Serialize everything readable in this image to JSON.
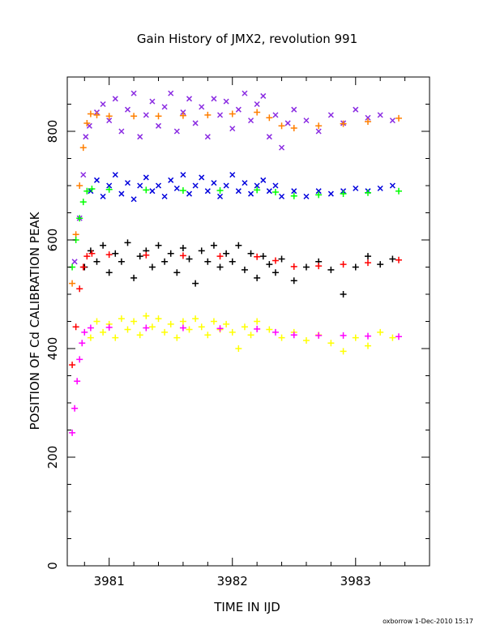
{
  "chart_data": {
    "type": "scatter",
    "title": "Gain History of JMX2, revolution 991",
    "xlabel": "TIME IN IJD",
    "ylabel": "POSITION OF Cd CALIBRATION PEAK",
    "xlim": [
      3980.66,
      3983.6
    ],
    "ylim": [
      0,
      900
    ],
    "xticks": [
      3981,
      3982,
      3983
    ],
    "yticks": [
      0,
      200,
      400,
      600,
      800
    ],
    "grid": false,
    "legend": "none",
    "series": [
      {
        "marker": "x",
        "color": "#8a2be2",
        "points": [
          [
            3980.72,
            560
          ],
          [
            3980.76,
            640
          ],
          [
            3980.79,
            720
          ],
          [
            3980.81,
            790
          ],
          [
            3980.84,
            810
          ],
          [
            3980.9,
            835
          ],
          [
            3980.95,
            850
          ],
          [
            3981.0,
            820
          ],
          [
            3981.05,
            860
          ],
          [
            3981.1,
            800
          ],
          [
            3981.15,
            840
          ],
          [
            3981.2,
            870
          ],
          [
            3981.25,
            790
          ],
          [
            3981.3,
            830
          ],
          [
            3981.35,
            855
          ],
          [
            3981.4,
            810
          ],
          [
            3981.45,
            845
          ],
          [
            3981.5,
            870
          ],
          [
            3981.55,
            800
          ],
          [
            3981.6,
            835
          ],
          [
            3981.65,
            860
          ],
          [
            3981.7,
            815
          ],
          [
            3981.75,
            845
          ],
          [
            3981.8,
            790
          ],
          [
            3981.85,
            860
          ],
          [
            3981.9,
            830
          ],
          [
            3981.95,
            855
          ],
          [
            3982.0,
            805
          ],
          [
            3982.05,
            840
          ],
          [
            3982.1,
            870
          ],
          [
            3982.15,
            820
          ],
          [
            3982.2,
            850
          ],
          [
            3982.25,
            865
          ],
          [
            3982.3,
            790
          ],
          [
            3982.35,
            830
          ],
          [
            3982.4,
            770
          ],
          [
            3982.45,
            815
          ],
          [
            3982.5,
            840
          ],
          [
            3982.6,
            820
          ],
          [
            3982.7,
            800
          ],
          [
            3982.8,
            830
          ],
          [
            3982.9,
            815
          ],
          [
            3983.0,
            840
          ],
          [
            3983.1,
            825
          ],
          [
            3983.2,
            830
          ],
          [
            3983.3,
            820
          ]
        ]
      },
      {
        "marker": "+",
        "color": "#ff7f00",
        "points": [
          [
            3980.7,
            520
          ],
          [
            3980.73,
            610
          ],
          [
            3980.76,
            700
          ],
          [
            3980.79,
            770
          ],
          [
            3980.82,
            815
          ],
          [
            3980.85,
            832
          ],
          [
            3980.9,
            830
          ],
          [
            3981.0,
            828
          ],
          [
            3981.2,
            828
          ],
          [
            3981.4,
            828
          ],
          [
            3981.6,
            829
          ],
          [
            3981.8,
            830
          ],
          [
            3982.0,
            832
          ],
          [
            3982.2,
            835
          ],
          [
            3982.3,
            825
          ],
          [
            3982.4,
            810
          ],
          [
            3982.5,
            806
          ],
          [
            3982.7,
            810
          ],
          [
            3982.9,
            814
          ],
          [
            3983.1,
            818
          ],
          [
            3983.35,
            824
          ]
        ]
      },
      {
        "marker": "x",
        "color": "#0000dd",
        "points": [
          [
            3980.85,
            690
          ],
          [
            3980.9,
            710
          ],
          [
            3980.95,
            680
          ],
          [
            3981.0,
            700
          ],
          [
            3981.05,
            720
          ],
          [
            3981.1,
            685
          ],
          [
            3981.15,
            705
          ],
          [
            3981.2,
            675
          ],
          [
            3981.25,
            700
          ],
          [
            3981.3,
            715
          ],
          [
            3981.35,
            690
          ],
          [
            3981.4,
            700
          ],
          [
            3981.45,
            680
          ],
          [
            3981.5,
            710
          ],
          [
            3981.55,
            695
          ],
          [
            3981.6,
            720
          ],
          [
            3981.65,
            685
          ],
          [
            3981.7,
            700
          ],
          [
            3981.75,
            715
          ],
          [
            3981.8,
            690
          ],
          [
            3981.85,
            705
          ],
          [
            3981.9,
            680
          ],
          [
            3981.95,
            700
          ],
          [
            3982.0,
            720
          ],
          [
            3982.05,
            690
          ],
          [
            3982.1,
            705
          ],
          [
            3982.15,
            685
          ],
          [
            3982.2,
            700
          ],
          [
            3982.25,
            710
          ],
          [
            3982.3,
            690
          ],
          [
            3982.35,
            700
          ],
          [
            3982.4,
            680
          ],
          [
            3982.5,
            690
          ],
          [
            3982.6,
            680
          ],
          [
            3982.7,
            690
          ],
          [
            3982.8,
            685
          ],
          [
            3982.9,
            690
          ],
          [
            3983.0,
            695
          ],
          [
            3983.1,
            690
          ],
          [
            3983.2,
            695
          ],
          [
            3983.3,
            700
          ]
        ]
      },
      {
        "marker": "+",
        "color": "#00ff00",
        "points": [
          [
            3980.7,
            550
          ],
          [
            3980.73,
            600
          ],
          [
            3980.76,
            640
          ],
          [
            3980.79,
            670
          ],
          [
            3980.82,
            690
          ],
          [
            3980.86,
            694
          ],
          [
            3981.0,
            693
          ],
          [
            3981.3,
            692
          ],
          [
            3981.6,
            691
          ],
          [
            3981.9,
            691
          ],
          [
            3982.2,
            692
          ],
          [
            3982.35,
            688
          ],
          [
            3982.5,
            681
          ],
          [
            3982.7,
            683
          ],
          [
            3982.9,
            685
          ],
          [
            3983.1,
            687
          ],
          [
            3983.35,
            690
          ]
        ]
      },
      {
        "marker": "+",
        "color": "#000000",
        "points": [
          [
            3980.8,
            550
          ],
          [
            3980.85,
            580
          ],
          [
            3980.9,
            560
          ],
          [
            3980.95,
            590
          ],
          [
            3981.0,
            540
          ],
          [
            3981.05,
            575
          ],
          [
            3981.1,
            560
          ],
          [
            3981.15,
            595
          ],
          [
            3981.2,
            530
          ],
          [
            3981.25,
            570
          ],
          [
            3981.3,
            580
          ],
          [
            3981.35,
            550
          ],
          [
            3981.4,
            590
          ],
          [
            3981.45,
            560
          ],
          [
            3981.5,
            575
          ],
          [
            3981.55,
            540
          ],
          [
            3981.6,
            585
          ],
          [
            3981.65,
            565
          ],
          [
            3981.7,
            520
          ],
          [
            3981.75,
            580
          ],
          [
            3981.8,
            560
          ],
          [
            3981.85,
            590
          ],
          [
            3981.9,
            550
          ],
          [
            3981.95,
            575
          ],
          [
            3982.0,
            560
          ],
          [
            3982.05,
            590
          ],
          [
            3982.1,
            545
          ],
          [
            3982.15,
            575
          ],
          [
            3982.2,
            530
          ],
          [
            3982.25,
            570
          ],
          [
            3982.3,
            555
          ],
          [
            3982.35,
            540
          ],
          [
            3982.4,
            565
          ],
          [
            3982.5,
            525
          ],
          [
            3982.6,
            550
          ],
          [
            3982.7,
            560
          ],
          [
            3982.8,
            545
          ],
          [
            3982.9,
            500
          ],
          [
            3983.0,
            550
          ],
          [
            3983.1,
            570
          ],
          [
            3983.2,
            555
          ],
          [
            3983.3,
            565
          ]
        ]
      },
      {
        "marker": "+",
        "color": "#ff0000",
        "points": [
          [
            3980.7,
            370
          ],
          [
            3980.73,
            440
          ],
          [
            3980.76,
            510
          ],
          [
            3980.79,
            550
          ],
          [
            3980.82,
            570
          ],
          [
            3980.86,
            575
          ],
          [
            3981.0,
            573
          ],
          [
            3981.3,
            572
          ],
          [
            3981.6,
            571
          ],
          [
            3981.9,
            570
          ],
          [
            3982.2,
            569
          ],
          [
            3982.35,
            562
          ],
          [
            3982.5,
            551
          ],
          [
            3982.7,
            552
          ],
          [
            3982.9,
            555
          ],
          [
            3983.1,
            558
          ],
          [
            3983.35,
            563
          ]
        ]
      },
      {
        "marker": "+",
        "color": "#ffff00",
        "points": [
          [
            3980.85,
            420
          ],
          [
            3980.9,
            450
          ],
          [
            3980.95,
            430
          ],
          [
            3981.0,
            445
          ],
          [
            3981.05,
            420
          ],
          [
            3981.1,
            455
          ],
          [
            3981.15,
            435
          ],
          [
            3981.2,
            450
          ],
          [
            3981.25,
            425
          ],
          [
            3981.3,
            460
          ],
          [
            3981.35,
            440
          ],
          [
            3981.4,
            455
          ],
          [
            3981.45,
            430
          ],
          [
            3981.5,
            445
          ],
          [
            3981.55,
            420
          ],
          [
            3981.6,
            450
          ],
          [
            3981.65,
            435
          ],
          [
            3981.7,
            455
          ],
          [
            3981.75,
            440
          ],
          [
            3981.8,
            425
          ],
          [
            3981.85,
            450
          ],
          [
            3981.9,
            435
          ],
          [
            3981.95,
            445
          ],
          [
            3982.0,
            430
          ],
          [
            3982.05,
            400
          ],
          [
            3982.1,
            440
          ],
          [
            3982.15,
            425
          ],
          [
            3982.2,
            450
          ],
          [
            3982.3,
            435
          ],
          [
            3982.4,
            420
          ],
          [
            3982.5,
            430
          ],
          [
            3982.6,
            415
          ],
          [
            3982.7,
            425
          ],
          [
            3982.8,
            410
          ],
          [
            3982.9,
            395
          ],
          [
            3983.0,
            420
          ],
          [
            3983.1,
            405
          ],
          [
            3983.2,
            430
          ],
          [
            3983.3,
            420
          ]
        ]
      },
      {
        "marker": "+",
        "color": "#ff00ff",
        "points": [
          [
            3980.7,
            245
          ],
          [
            3980.72,
            290
          ],
          [
            3980.74,
            340
          ],
          [
            3980.76,
            380
          ],
          [
            3980.78,
            410
          ],
          [
            3980.8,
            430
          ],
          [
            3980.85,
            438
          ],
          [
            3981.0,
            439
          ],
          [
            3981.3,
            438
          ],
          [
            3981.6,
            438
          ],
          [
            3981.9,
            437
          ],
          [
            3982.2,
            436
          ],
          [
            3982.35,
            430
          ],
          [
            3982.5,
            425
          ],
          [
            3982.7,
            424
          ],
          [
            3982.9,
            424
          ],
          [
            3983.1,
            423
          ],
          [
            3983.35,
            422
          ]
        ]
      }
    ]
  },
  "footer": "oxborrow   1-Dec-2010 15:17"
}
